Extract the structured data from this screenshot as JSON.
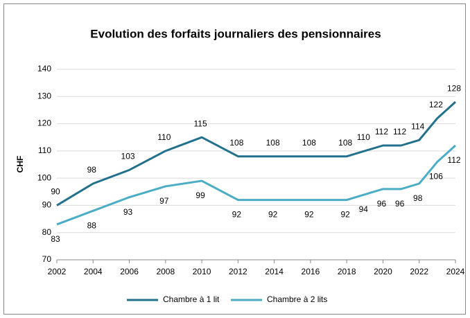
{
  "chart_data": {
    "type": "line",
    "title": "Evolution des forfaits journaliers des pensionnaires",
    "y_label": "CHF",
    "x": [
      2002,
      2004,
      2006,
      2008,
      2010,
      2012,
      2014,
      2016,
      2018,
      2019,
      2020,
      2021,
      2022,
      2023,
      2024
    ],
    "series": [
      {
        "name": "Chambre à 1 lit",
        "color": "#22718c",
        "values": [
          90,
          98,
          103,
          110,
          115,
          108,
          108,
          108,
          108,
          110,
          112,
          112,
          114,
          122,
          128
        ]
      },
      {
        "name": "Chambre à 2 lits",
        "color": "#4bacc6",
        "values": [
          83,
          88,
          93,
          97,
          99,
          92,
          92,
          92,
          92,
          94,
          96,
          96,
          98,
          106,
          112
        ]
      }
    ],
    "xlim": [
      2002,
      2024
    ],
    "xticks": [
      2002,
      2004,
      2006,
      2008,
      2010,
      2012,
      2014,
      2016,
      2018,
      2020,
      2022,
      2024
    ],
    "ylim": [
      70,
      140
    ],
    "yticks": [
      70,
      80,
      90,
      100,
      110,
      120,
      130,
      140
    ],
    "grid": true,
    "legend": "bottom"
  }
}
